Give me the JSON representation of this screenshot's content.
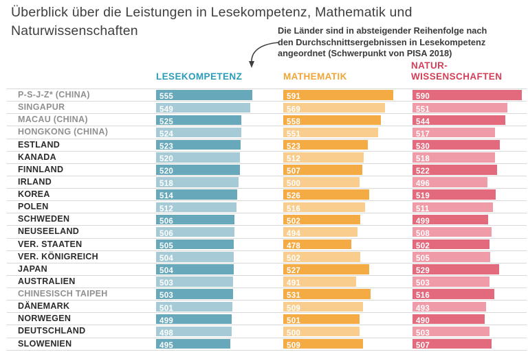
{
  "title": "Überblick über die Leistungen in Lesekompetenz, Mathematik und Naturwissenschaften",
  "annotation": {
    "lines": [
      "Die Länder sind in absteigender Reihenfolge nach",
      "den Durchschnittsergebnissen in Lesekompetenz",
      "angeordnet (Schwerpunkt von PISA 2018)"
    ]
  },
  "columns": [
    {
      "key": "reading",
      "label": "LESEKOMPETENZ",
      "color": "#2a9bba",
      "bar_dark": "#67a8bb",
      "bar_light": "#a6cbd6"
    },
    {
      "key": "math",
      "label": "MATHEMATIK",
      "color": "#f0a636",
      "bar_dark": "#f5ab43",
      "bar_light": "#f8cd8d"
    },
    {
      "key": "science",
      "label": "NATUR-\nWISSENSCHAFTEN",
      "color": "#d23f57",
      "bar_dark": "#e36a7d",
      "bar_light": "#f09ba8"
    }
  ],
  "chart_data": {
    "type": "bar",
    "orientation": "horizontal",
    "title": "Überblick über die Leistungen in Lesekompetenz, Mathematik und Naturwissenschaften",
    "note": "Die Länder sind in absteigender Reihenfolge nach den Durchschnittsergebnissen in Lesekompetenz angeordnet (Schwerpunkt von PISA 2018)",
    "categories": [
      "P-S-J-Z* (CHINA)",
      "SINGAPUR",
      "MACAU (CHINA)",
      "HONGKONG (CHINA)",
      "ESTLAND",
      "KANADA",
      "FINNLAND",
      "IRLAND",
      "KOREA",
      "POLEN",
      "SCHWEDEN",
      "NEUSEELAND",
      "VER. STAATEN",
      "VER. KÖNIGREICH",
      "JAPAN",
      "AUSTRALIEN",
      "CHINESISCH TAIPEH",
      "DÄNEMARK",
      "NORWEGEN",
      "DEUTSCHLAND",
      "SLOWENIEN"
    ],
    "series": [
      {
        "name": "Lesekompetenz",
        "values": [
          555,
          549,
          525,
          524,
          523,
          520,
          520,
          518,
          514,
          512,
          506,
          506,
          505,
          504,
          504,
          503,
          503,
          501,
          499,
          498,
          495
        ]
      },
      {
        "name": "Mathematik",
        "values": [
          591,
          569,
          558,
          551,
          523,
          512,
          507,
          500,
          526,
          516,
          502,
          494,
          478,
          502,
          527,
          491,
          531,
          509,
          501,
          500,
          509
        ]
      },
      {
        "name": "Naturwissenschaften",
        "values": [
          590,
          551,
          544,
          517,
          530,
          518,
          522,
          496,
          519,
          511,
          499,
          508,
          502,
          505,
          529,
          503,
          516,
          493,
          490,
          503,
          507
        ]
      }
    ],
    "muted_categories": [
      "P-S-J-Z* (CHINA)",
      "SINGAPUR",
      "MACAU (CHINA)",
      "HONGKONG (CHINA)",
      "CHINESISCH TAIPEH"
    ],
    "value_range_hint": [
      295,
      600
    ],
    "grid": "row-separators",
    "legend_position": "column-headers"
  }
}
